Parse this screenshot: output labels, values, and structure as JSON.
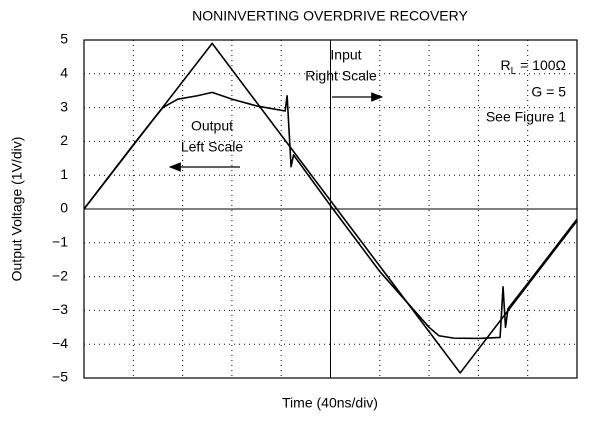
{
  "chart_data": {
    "type": "line",
    "title": "NONINVERTING OVERDRIVE RECOVERY",
    "x_label": "Time (40ns/div)",
    "y_label": "Output Voltage (1V/div)",
    "xlim": [
      0,
      10
    ],
    "xticks": [
      0,
      1,
      2,
      3,
      4,
      5,
      6,
      7,
      8,
      9,
      10
    ],
    "ylim": [
      -5,
      5
    ],
    "yticks": [
      {
        "value": -5,
        "label": "−5"
      },
      {
        "value": -4,
        "label": "−4"
      },
      {
        "value": -3,
        "label": "−3"
      },
      {
        "value": -2,
        "label": "−2"
      },
      {
        "value": -1,
        "label": "−1"
      },
      0,
      1,
      2,
      3,
      4,
      5
    ],
    "grid": true,
    "series": [
      {
        "name": "Input",
        "color": "#000000",
        "x": [
          0,
          2.6,
          7.63,
          10
        ],
        "values": [
          0,
          4.9,
          -4.85,
          -0.35
        ]
      },
      {
        "name": "Output",
        "color": "#000000",
        "x": [
          0,
          0.5,
          1.0,
          1.35,
          1.6,
          1.9,
          2.3,
          2.6,
          3.0,
          3.5,
          4.08,
          4.12,
          4.2,
          4.25,
          5.0,
          6.0,
          7.0,
          7.2,
          7.5,
          8.0,
          8.44,
          8.5,
          8.55,
          8.6,
          9.0,
          10
        ],
        "values": [
          0,
          0.95,
          1.9,
          2.55,
          3.0,
          3.25,
          3.35,
          3.45,
          3.25,
          3.05,
          2.9,
          3.35,
          1.25,
          1.6,
          0.1,
          -1.85,
          -3.5,
          -3.75,
          -3.82,
          -3.83,
          -3.8,
          -2.3,
          -3.5,
          -2.95,
          -2.2,
          -0.3
        ]
      }
    ],
    "annotations": {
      "input": [
        "Input",
        "Right Scale"
      ],
      "output": [
        "Output",
        "Left Scale"
      ],
      "rl": [
        "R",
        "L",
        " = 100Ω"
      ],
      "gain": "G = 5",
      "figure": "See Figure 1"
    }
  }
}
